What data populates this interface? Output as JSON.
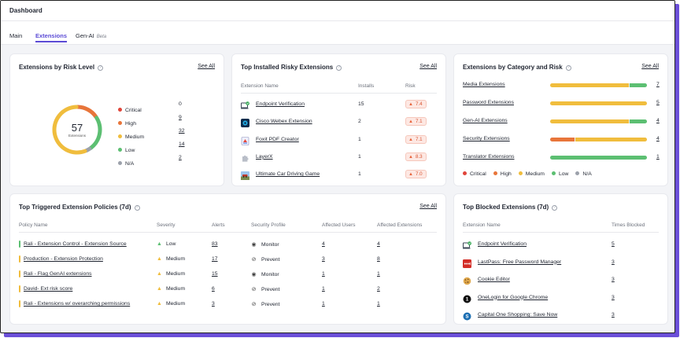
{
  "header": {
    "title": "Dashboard"
  },
  "tabs": [
    {
      "label": "Main"
    },
    {
      "label": "Extensions"
    },
    {
      "label": "Gen-AI"
    }
  ],
  "beta_label": "Beta",
  "see_all": "See All",
  "risk_level": {
    "title": "Extensions by Risk Level",
    "total": "57",
    "total_label": "Extensions",
    "items": [
      {
        "label": "Critical",
        "count": "0",
        "color": "#e0453a"
      },
      {
        "label": "High",
        "count": "9",
        "color": "#e8753a"
      },
      {
        "label": "Medium",
        "count": "32",
        "color": "#f0bd3d"
      },
      {
        "label": "Low",
        "count": "14",
        "color": "#5cbf72"
      },
      {
        "label": "N/A",
        "count": "2",
        "color": "#9ca1ab"
      }
    ]
  },
  "top_installed": {
    "title": "Top Installed Risky Extensions",
    "headers": [
      "Extension Name",
      "Installs",
      "Risk"
    ],
    "rows": [
      {
        "name": "Endpoint Verification",
        "installs": "15",
        "risk": "7.4",
        "icon": "endpoint-verification-icon"
      },
      {
        "name": "Cisco Webex Extension",
        "installs": "2",
        "risk": "7.1",
        "icon": "webex-icon"
      },
      {
        "name": "Foxit PDF Creator",
        "installs": "1",
        "risk": "7.1",
        "icon": "foxit-icon"
      },
      {
        "name": "LayerX",
        "installs": "1",
        "risk": "8.3",
        "icon": "puzzle-icon"
      },
      {
        "name": "Ultimate Car Driving Game",
        "installs": "1",
        "risk": "7.0",
        "icon": "car-game-icon"
      }
    ]
  },
  "category": {
    "title": "Extensions by Category and Risk",
    "rows": [
      {
        "name": "Media Extensions",
        "count": "7",
        "segments": [
          {
            "c": "#f0bd3d",
            "v": 0.82
          },
          {
            "c": "#5cbf72",
            "v": 0.18
          }
        ]
      },
      {
        "name": "Password Extensions",
        "count": "5",
        "segments": [
          {
            "c": "#f0bd3d",
            "v": 1
          }
        ]
      },
      {
        "name": "Gen-AI Extensions",
        "count": "4",
        "segments": [
          {
            "c": "#f0bd3d",
            "v": 0.82
          },
          {
            "c": "#5cbf72",
            "v": 0.18
          }
        ]
      },
      {
        "name": "Security Extensions",
        "count": "4",
        "segments": [
          {
            "c": "#e8753a",
            "v": 0.25
          },
          {
            "c": "#f0bd3d",
            "v": 0.75
          }
        ]
      },
      {
        "name": "Translator Extensions",
        "count": "1",
        "segments": [
          {
            "c": "#5cbf72",
            "v": 1
          }
        ]
      }
    ],
    "legend": [
      {
        "label": "Critical",
        "color": "#e0453a"
      },
      {
        "label": "High",
        "color": "#e8753a"
      },
      {
        "label": "Medium",
        "color": "#f0bd3d"
      },
      {
        "label": "Low",
        "color": "#5cbf72"
      },
      {
        "label": "N/A",
        "color": "#9ca1ab"
      }
    ]
  },
  "policies": {
    "title": "Top Triggered Extension Policies (7d)",
    "headers": [
      "Policy Name",
      "Severity",
      "Alerts",
      "Security Profile",
      "Affected Users",
      "Affected Extensions"
    ],
    "rows": [
      {
        "name": "Rali - Extension Control - Extension Source",
        "severity": "Low",
        "sev_color": "#5cbf72",
        "mark": "#5cbf72",
        "alerts": "83",
        "profile": "Monitor",
        "profile_icon": "eye-icon",
        "users": "4",
        "exts": "4"
      },
      {
        "name": "Production - Extension Protection",
        "severity": "Medium",
        "sev_color": "#f0bd3d",
        "mark": "#f0bd3d",
        "alerts": "17",
        "profile": "Prevent",
        "profile_icon": "block-icon",
        "users": "3",
        "exts": "8"
      },
      {
        "name": "Rali - Flag GenAI extensions",
        "severity": "Medium",
        "sev_color": "#f0bd3d",
        "mark": "#f0bd3d",
        "alerts": "15",
        "profile": "Monitor",
        "profile_icon": "eye-icon",
        "users": "1",
        "exts": "1"
      },
      {
        "name": "David- Ext risk score",
        "severity": "Medium",
        "sev_color": "#f0bd3d",
        "mark": "#f0bd3d",
        "alerts": "6",
        "profile": "Prevent",
        "profile_icon": "block-icon",
        "users": "1",
        "exts": "2"
      },
      {
        "name": "Rali - Extensions w/ overarching permissions",
        "severity": "Medium",
        "sev_color": "#f0bd3d",
        "mark": "#f0bd3d",
        "alerts": "3",
        "profile": "Prevent",
        "profile_icon": "block-icon",
        "users": "1",
        "exts": "1"
      }
    ]
  },
  "blocked": {
    "title": "Top Blocked Extensions (7d)",
    "headers": [
      "Extension Name",
      "Times Blocked"
    ],
    "rows": [
      {
        "name": "Endpoint Verification",
        "count": "5",
        "icon": "endpoint-verification-icon"
      },
      {
        "name": "LastPass: Free Password Manager",
        "count": "3",
        "icon": "lastpass-icon"
      },
      {
        "name": "Cookie Editor",
        "count": "3",
        "icon": "cookie-icon"
      },
      {
        "name": "OneLogin for Google Chrome",
        "count": "3",
        "icon": "onelogin-icon"
      },
      {
        "name": "Capital One Shopping: Save Now",
        "count": "3",
        "icon": "capital-one-icon"
      }
    ]
  }
}
